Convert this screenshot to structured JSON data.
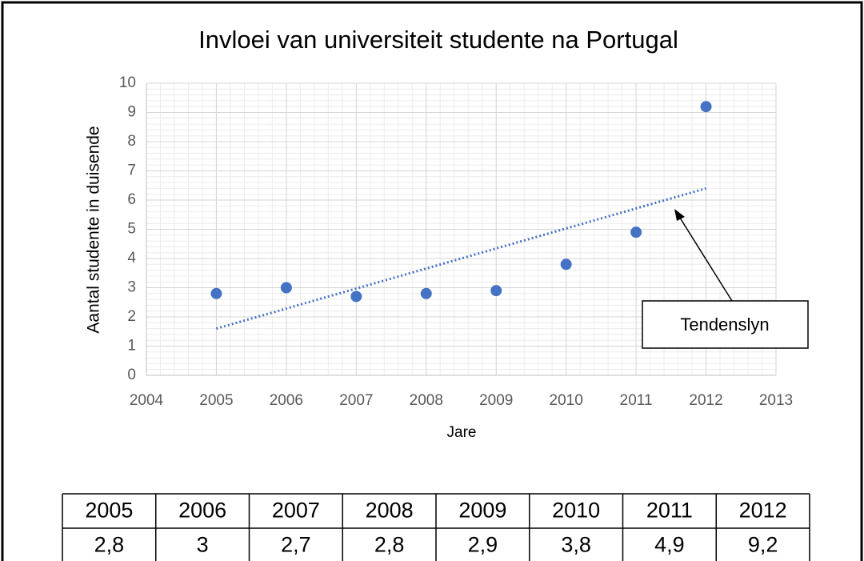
{
  "chart_data": {
    "type": "scatter",
    "title": "Invloei van universiteit studente na Portugal",
    "x_label": "Jare",
    "y_label": "Aantal studente in duisende",
    "x": [
      2005,
      2006,
      2007,
      2008,
      2009,
      2010,
      2011,
      2012
    ],
    "values": [
      2.8,
      3,
      2.7,
      2.8,
      2.9,
      3.8,
      4.9,
      9.2
    ],
    "color": "#4472c4",
    "trendline": {
      "x": [
        2005,
        2012
      ],
      "values": [
        1.6,
        6.4
      ],
      "color": "#4472c4"
    },
    "annotation": "Tendenslyn",
    "xlim": [
      2004,
      2013
    ],
    "xticks": [
      2004,
      2005,
      2006,
      2007,
      2008,
      2009,
      2010,
      2011,
      2012,
      2013
    ],
    "ylim": [
      0,
      10
    ],
    "yticks": [
      0,
      1,
      2,
      3,
      4,
      5,
      6,
      7,
      8,
      9,
      10
    ],
    "grid": true,
    "minor_grid": true
  },
  "table": {
    "rows": [
      [
        "2005",
        "2006",
        "2007",
        "2008",
        "2009",
        "2010",
        "2011",
        "2012"
      ],
      [
        "2,8",
        "3",
        "2,7",
        "2,8",
        "2,9",
        "3,8",
        "4,9",
        "9,2"
      ]
    ]
  }
}
